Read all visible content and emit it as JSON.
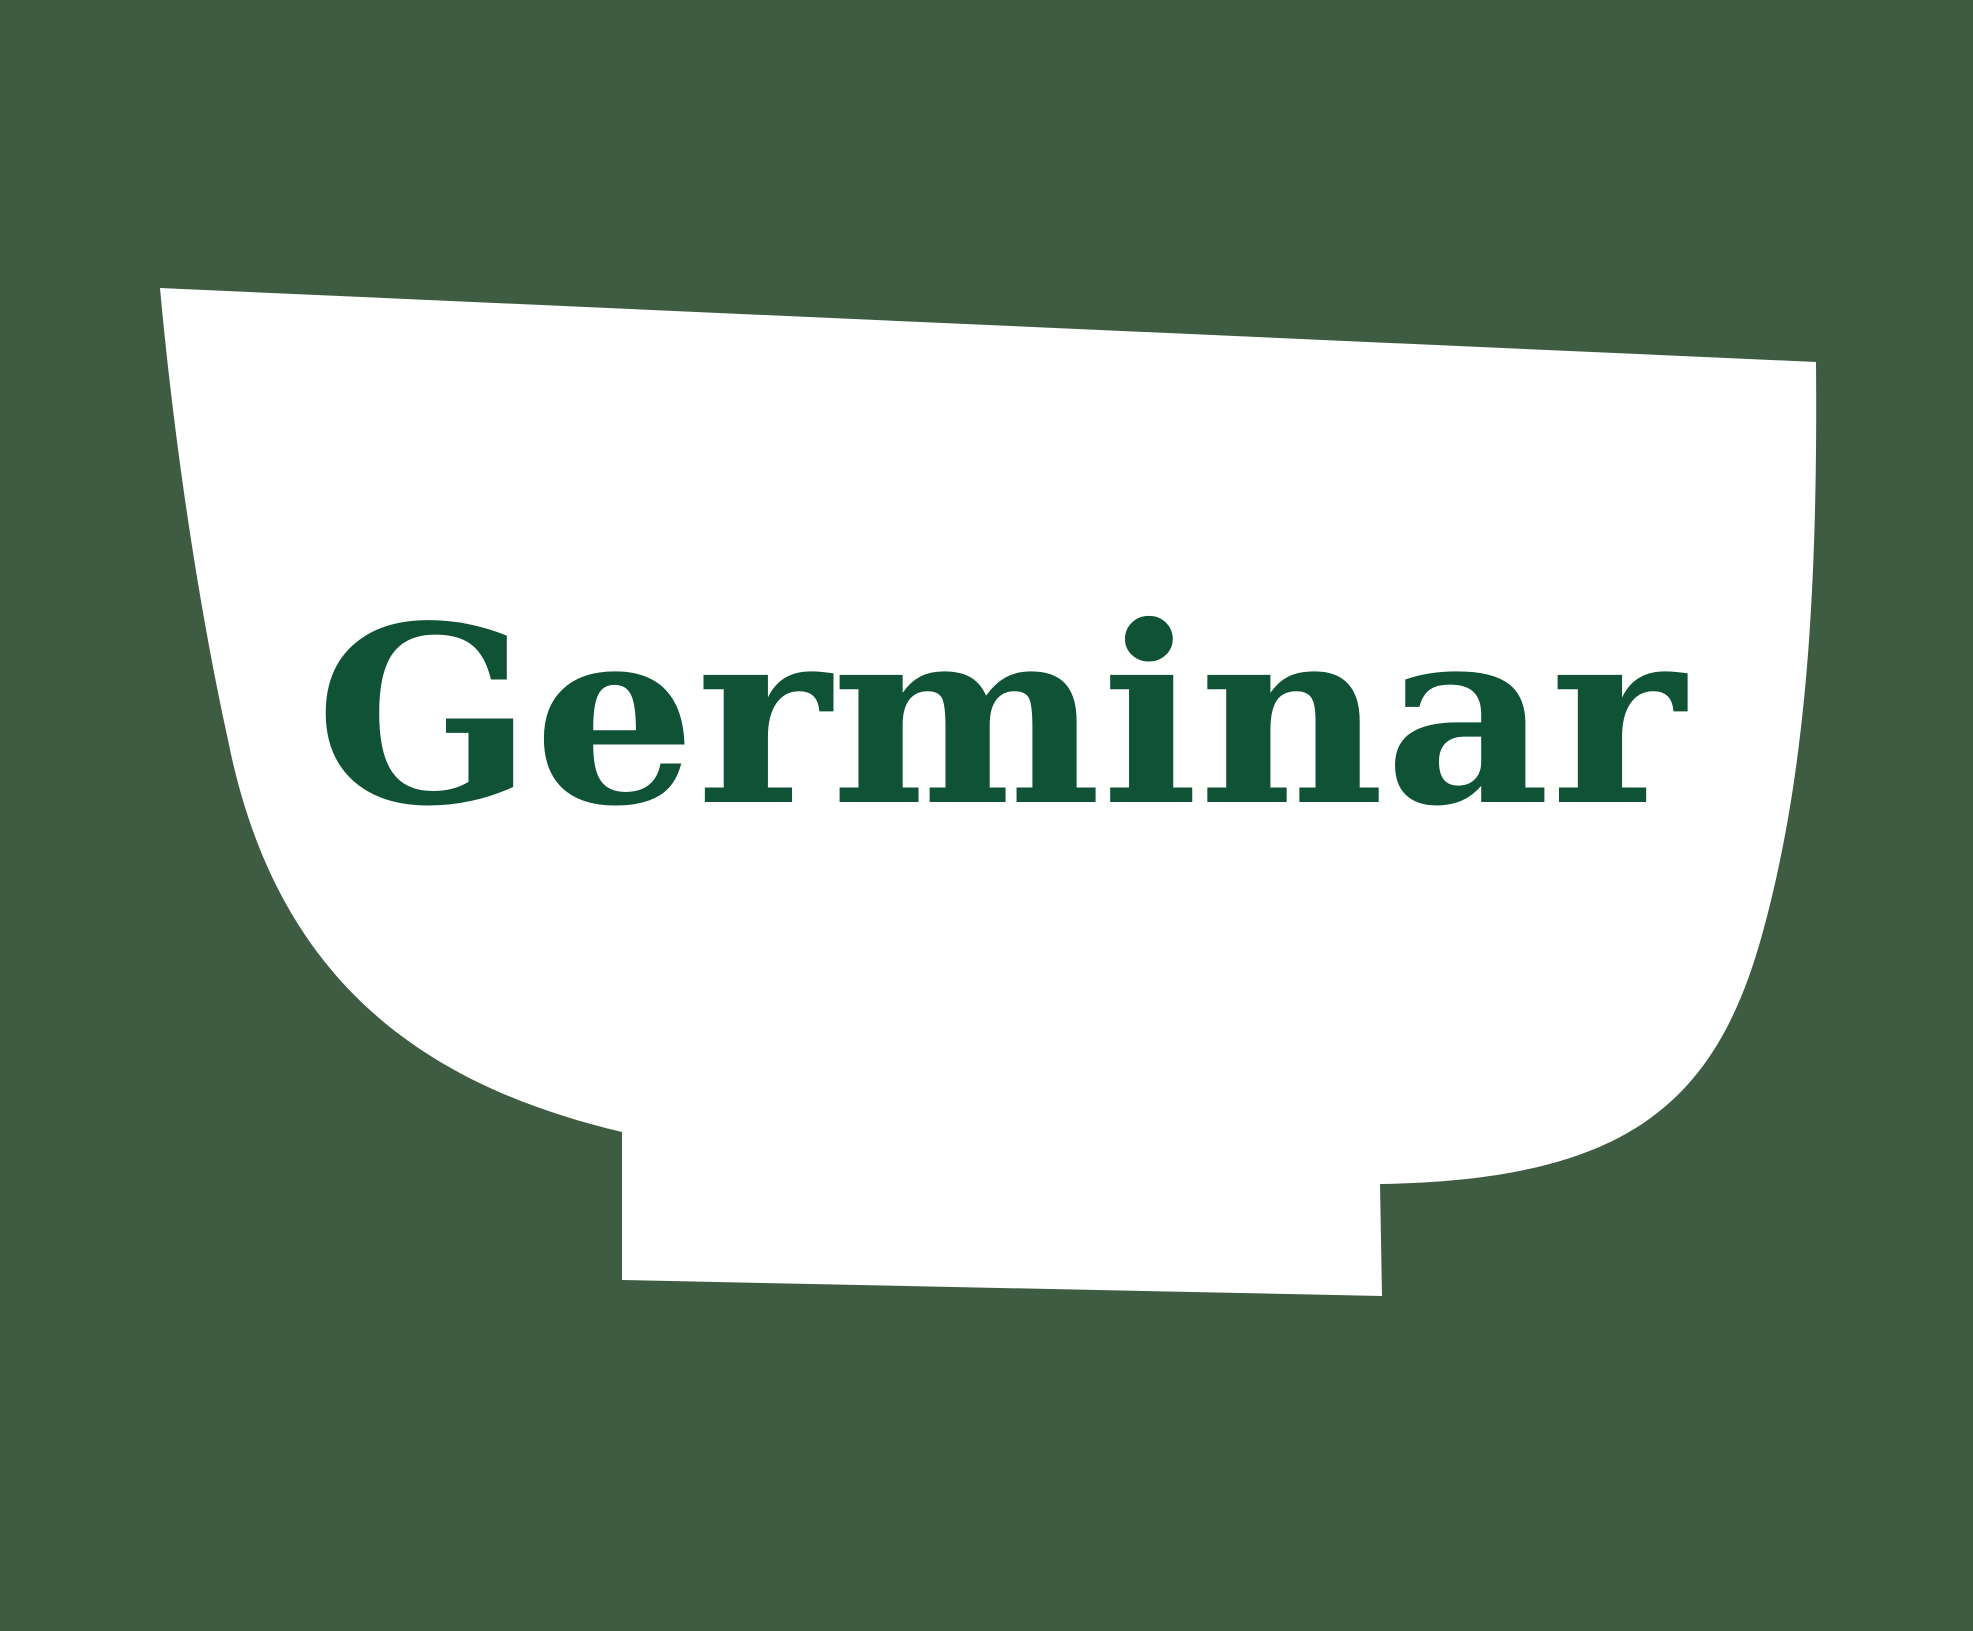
{
  "brand": {
    "wordmark": "Germinar"
  },
  "colors": {
    "background": "#3e5c42",
    "bowl": "#ffffff",
    "wordmark": "#0f5236"
  },
  "icons": {
    "logo": "bowl-icon"
  }
}
